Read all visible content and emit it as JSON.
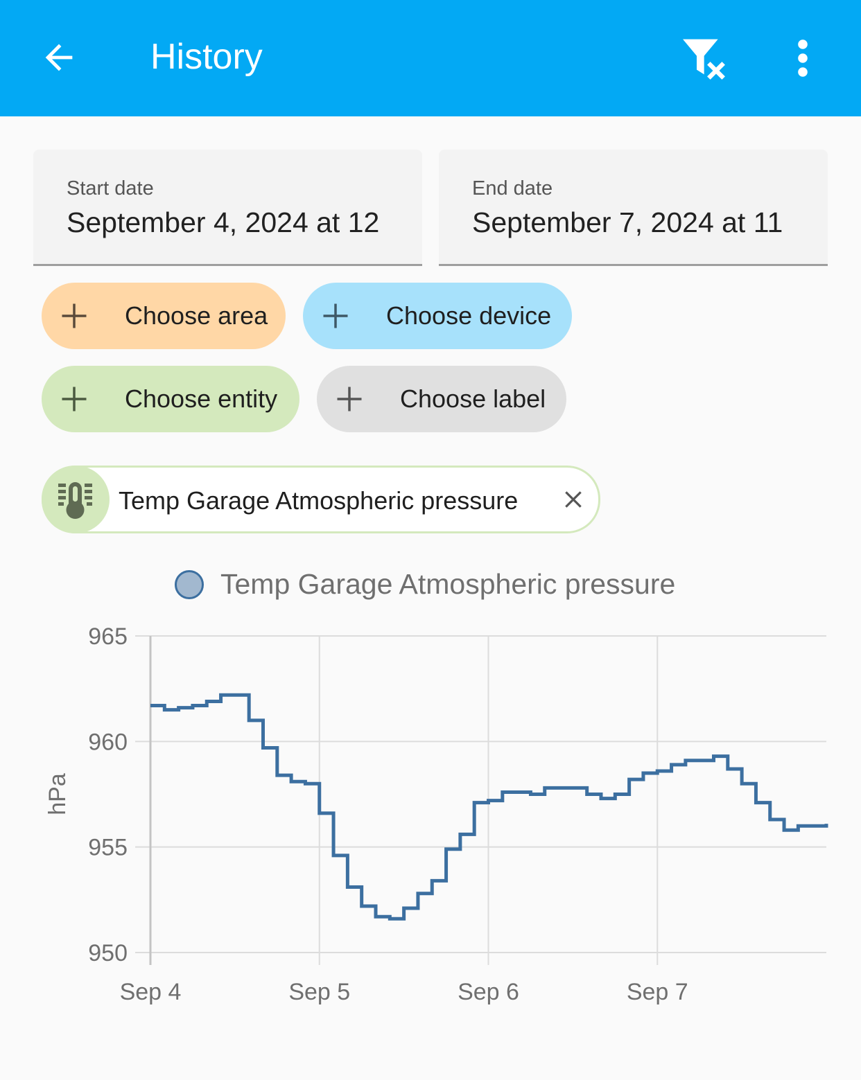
{
  "header": {
    "title": "History",
    "back_icon": "arrow-left-icon",
    "filter_icon": "filter-remove-icon",
    "menu_icon": "dots-vertical-icon",
    "color": "#03a9f4"
  },
  "dates": {
    "start_label": "Start date",
    "start_value": "September 4, 2024 at 12",
    "end_label": "End date",
    "end_value": "September 7, 2024 at 11"
  },
  "chips": [
    {
      "label": "Choose area",
      "color": "#ffd7a6"
    },
    {
      "label": "Choose device",
      "color": "#a7e1fb"
    },
    {
      "label": "Choose entity",
      "color": "#d4e9bd"
    },
    {
      "label": "Choose label",
      "color": "#e0e0e0"
    }
  ],
  "selected_entity": {
    "name": "Temp Garage Atmospheric pressure",
    "icon": "thermometer-lines-icon"
  },
  "chart_data": {
    "type": "line",
    "step": true,
    "legend": [
      {
        "name": "Temp Garage Atmospheric pressure",
        "color": "#3c6fa0"
      }
    ],
    "legend_position": "top",
    "ylabel": "hPa",
    "ylim": [
      950,
      965
    ],
    "yticks": [
      "965",
      "960",
      "955",
      "950"
    ],
    "xticks": [
      "Sep 4",
      "Sep 5",
      "Sep 6",
      "Sep 7"
    ],
    "xlim": [
      "2024-09-04 00:00",
      "2024-09-08 00:00"
    ],
    "grid": true,
    "series": [
      {
        "name": "Temp Garage Atmospheric pressure",
        "color": "#3c6fa0",
        "points": [
          [
            "2024-09-04 00:00",
            961.7
          ],
          [
            "2024-09-04 02:00",
            961.5
          ],
          [
            "2024-09-04 04:00",
            961.6
          ],
          [
            "2024-09-04 06:00",
            961.7
          ],
          [
            "2024-09-04 08:00",
            961.9
          ],
          [
            "2024-09-04 10:00",
            962.2
          ],
          [
            "2024-09-04 12:00",
            962.2
          ],
          [
            "2024-09-04 14:00",
            961.0
          ],
          [
            "2024-09-04 16:00",
            959.7
          ],
          [
            "2024-09-04 18:00",
            958.4
          ],
          [
            "2024-09-04 20:00",
            958.1
          ],
          [
            "2024-09-04 22:00",
            958.0
          ],
          [
            "2024-09-05 00:00",
            956.6
          ],
          [
            "2024-09-05 02:00",
            954.6
          ],
          [
            "2024-09-05 04:00",
            953.1
          ],
          [
            "2024-09-05 06:00",
            952.2
          ],
          [
            "2024-09-05 08:00",
            951.7
          ],
          [
            "2024-09-05 10:00",
            951.6
          ],
          [
            "2024-09-05 12:00",
            952.1
          ],
          [
            "2024-09-05 14:00",
            952.8
          ],
          [
            "2024-09-05 16:00",
            953.4
          ],
          [
            "2024-09-05 18:00",
            954.9
          ],
          [
            "2024-09-05 20:00",
            955.6
          ],
          [
            "2024-09-05 22:00",
            957.1
          ],
          [
            "2024-09-06 00:00",
            957.2
          ],
          [
            "2024-09-06 02:00",
            957.6
          ],
          [
            "2024-09-06 04:00",
            957.6
          ],
          [
            "2024-09-06 06:00",
            957.5
          ],
          [
            "2024-09-06 08:00",
            957.8
          ],
          [
            "2024-09-06 10:00",
            957.8
          ],
          [
            "2024-09-06 12:00",
            957.8
          ],
          [
            "2024-09-06 14:00",
            957.5
          ],
          [
            "2024-09-06 16:00",
            957.3
          ],
          [
            "2024-09-06 18:00",
            957.5
          ],
          [
            "2024-09-06 20:00",
            958.2
          ],
          [
            "2024-09-06 22:00",
            958.5
          ],
          [
            "2024-09-07 00:00",
            958.6
          ],
          [
            "2024-09-07 02:00",
            958.9
          ],
          [
            "2024-09-07 04:00",
            959.1
          ],
          [
            "2024-09-07 06:00",
            959.1
          ],
          [
            "2024-09-07 08:00",
            959.3
          ],
          [
            "2024-09-07 10:00",
            958.7
          ],
          [
            "2024-09-07 12:00",
            958.0
          ],
          [
            "2024-09-07 14:00",
            957.1
          ],
          [
            "2024-09-07 16:00",
            956.3
          ],
          [
            "2024-09-07 18:00",
            955.8
          ],
          [
            "2024-09-07 20:00",
            956.0
          ],
          [
            "2024-09-07 22:00",
            956.0
          ],
          [
            "2024-09-08 00:00",
            956.1
          ]
        ]
      }
    ]
  }
}
